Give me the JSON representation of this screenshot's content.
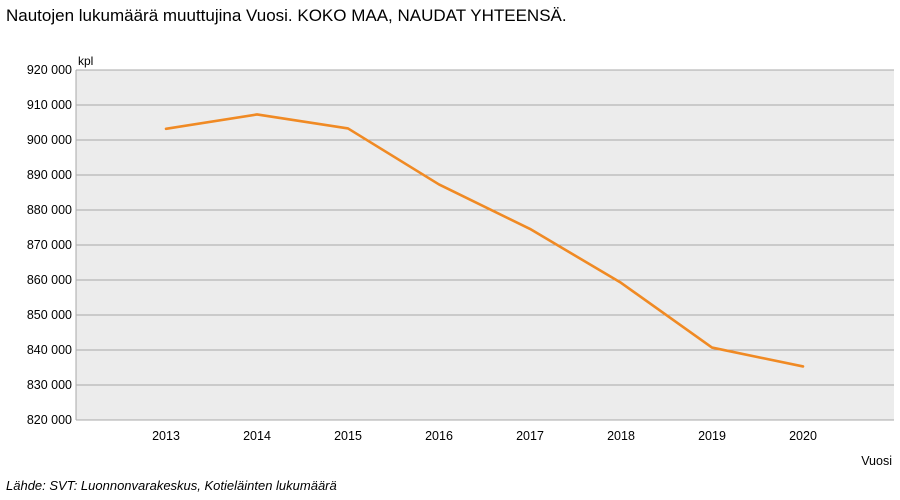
{
  "title": "Nautojen lukumäärä muuttujina Vuosi. KOKO MAA, NAUDAT YHTEENSÄ.",
  "source": "Lähde: SVT: Luonnonvarakeskus, Kotieläinten lukumäärä",
  "colors": {
    "line": "#f08a24",
    "plot_bg": "#ececec",
    "grid": "#a9a9a9"
  },
  "chart_data": {
    "type": "line",
    "title": "Nautojen lukumäärä muuttujina Vuosi. KOKO MAA, NAUDAT YHTEENSÄ.",
    "xlabel": "Vuosi",
    "ylabel": "kpl",
    "categories": [
      "2013",
      "2014",
      "2015",
      "2016",
      "2017",
      "2018",
      "2019",
      "2020"
    ],
    "series": [
      {
        "values": [
          903200,
          907300,
          903300,
          887300,
          874600,
          859200,
          840700,
          835300
        ]
      }
    ],
    "ylim": [
      820000,
      920000
    ],
    "yticks": [
      820000,
      830000,
      840000,
      850000,
      860000,
      870000,
      880000,
      890000,
      900000,
      910000,
      920000
    ],
    "ytick_labels": [
      "820 000",
      "830 000",
      "840 000",
      "850 000",
      "860 000",
      "870 000",
      "880 000",
      "890 000",
      "900 000",
      "910 000",
      "920 000"
    ],
    "grid": true,
    "legend": "none"
  }
}
